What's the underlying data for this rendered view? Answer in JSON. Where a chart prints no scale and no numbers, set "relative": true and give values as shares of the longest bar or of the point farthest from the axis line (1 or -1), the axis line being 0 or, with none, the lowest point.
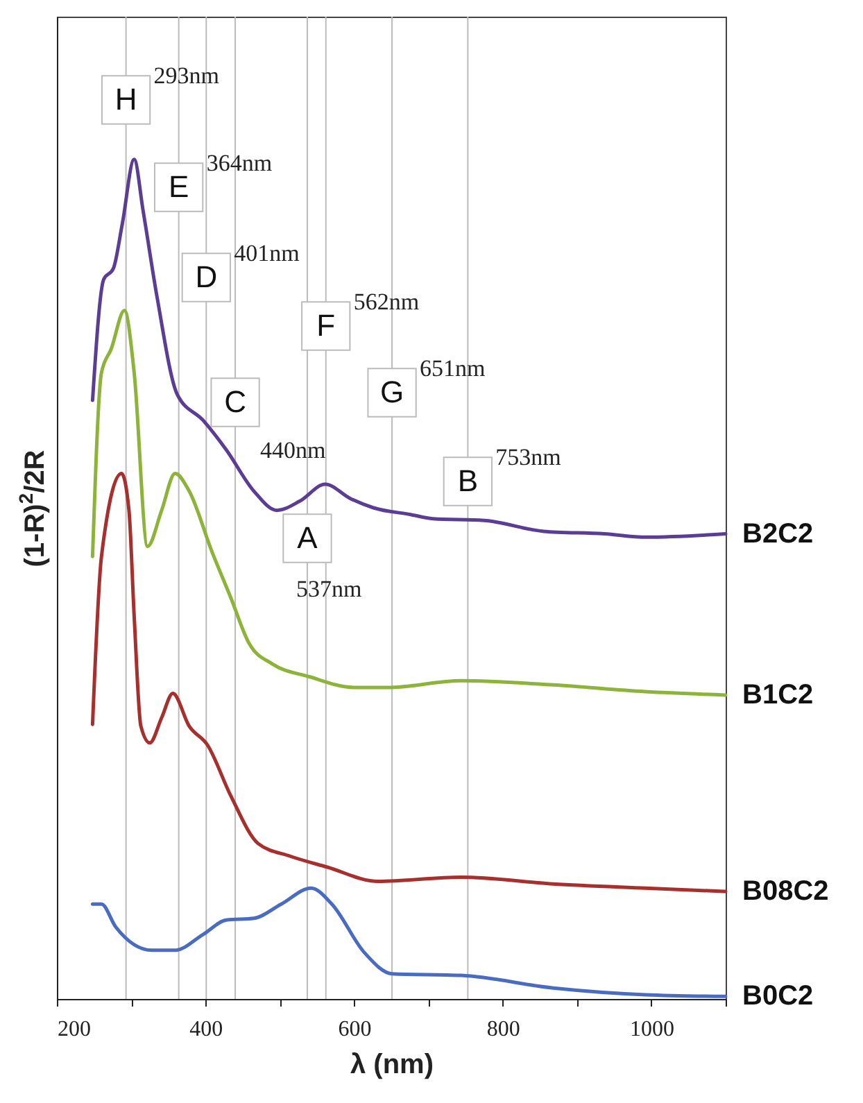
{
  "chart_data": {
    "type": "line",
    "xlabel": "λ (nm)",
    "ylabel": "(1-R)$^{2}$/2R",
    "relative": true,
    "grid": false,
    "marker": "none",
    "line_style": "solid",
    "xlim": [
      200,
      1100
    ],
    "xticks": [
      200,
      {
        "value": 300,
        "label": null
      },
      400,
      {
        "value": 500,
        "label": null
      },
      600,
      {
        "value": 700,
        "label": null
      },
      800,
      {
        "value": 900,
        "label": null
      },
      1000,
      {
        "value": 1100,
        "label": null
      }
    ],
    "series": [
      {
        "name": "B2C2",
        "color": "#5b3d94",
        "x": [
          248,
          263,
          276,
          288,
          304,
          316,
          335,
          362,
          397,
          428,
          465,
          496,
          527,
          561,
          595,
          626,
          676,
          706,
          775,
          855,
          937,
          993,
          1100
        ],
        "values": [
          0.713,
          0.857,
          0.87,
          0.923,
          1.0,
          0.939,
          0.835,
          0.72,
          0.689,
          0.654,
          0.605,
          0.582,
          0.593,
          0.613,
          0.596,
          0.585,
          0.577,
          0.572,
          0.57,
          0.557,
          0.554,
          0.55,
          0.554
        ]
      },
      {
        "name": "B1C2",
        "color": "#8db33a",
        "x": [
          248,
          260,
          273,
          291,
          304,
          322,
          341,
          359,
          378,
          409,
          434,
          459,
          490,
          539,
          601,
          645,
          744,
          868,
          992,
          1100
        ],
        "values": [
          0.527,
          0.746,
          0.774,
          0.82,
          0.746,
          0.539,
          0.582,
          0.626,
          0.605,
          0.532,
          0.478,
          0.423,
          0.399,
          0.384,
          0.371,
          0.371,
          0.379,
          0.374,
          0.366,
          0.362
        ]
      },
      {
        "name": "B08C2",
        "color": "#a5302e",
        "x": [
          248,
          260,
          287,
          297,
          304,
          313,
          325,
          341,
          356,
          378,
          403,
          434,
          471,
          514,
          564,
          632,
          744,
          868,
          992,
          1100
        ],
        "values": [
          0.327,
          0.527,
          0.626,
          0.582,
          0.456,
          0.325,
          0.305,
          0.335,
          0.364,
          0.325,
          0.302,
          0.242,
          0.185,
          0.17,
          0.157,
          0.14,
          0.145,
          0.137,
          0.132,
          0.128
        ]
      },
      {
        "name": "B0C2",
        "color": "#4a6cc0",
        "x": [
          248,
          260,
          279,
          328,
          359,
          397,
          428,
          465,
          502,
          542,
          570,
          614,
          651,
          744,
          868,
          992,
          1100
        ],
        "values": [
          0.113,
          0.113,
          0.086,
          0.058,
          0.058,
          0.077,
          0.094,
          0.096,
          0.113,
          0.132,
          0.113,
          0.055,
          0.03,
          0.028,
          0.013,
          0.005,
          0.003
        ]
      }
    ],
    "ref_lines": [
      {
        "axis": "x",
        "value": 293,
        "label": "H",
        "color": "#bbbbbb"
      },
      {
        "axis": "x",
        "value": 364,
        "label": "E",
        "color": "#bbbbbb"
      },
      {
        "axis": "x",
        "value": 401,
        "label": "D",
        "color": "#bbbbbb"
      },
      {
        "axis": "x",
        "value": 440,
        "label": "C",
        "color": "#bbbbbb"
      },
      {
        "axis": "x",
        "value": 537,
        "label": "A",
        "color": "#bbbbbb"
      },
      {
        "axis": "x",
        "value": 562,
        "label": "F",
        "color": "#bbbbbb"
      },
      {
        "axis": "x",
        "value": 651,
        "label": "G",
        "color": "#bbbbbb"
      },
      {
        "axis": "x",
        "value": 753,
        "label": "B",
        "color": "#bbbbbb"
      }
    ],
    "annotations": [
      "293nm",
      "364nm",
      "401nm",
      "440nm",
      "537nm",
      "562nm",
      "651nm",
      "753nm"
    ]
  }
}
